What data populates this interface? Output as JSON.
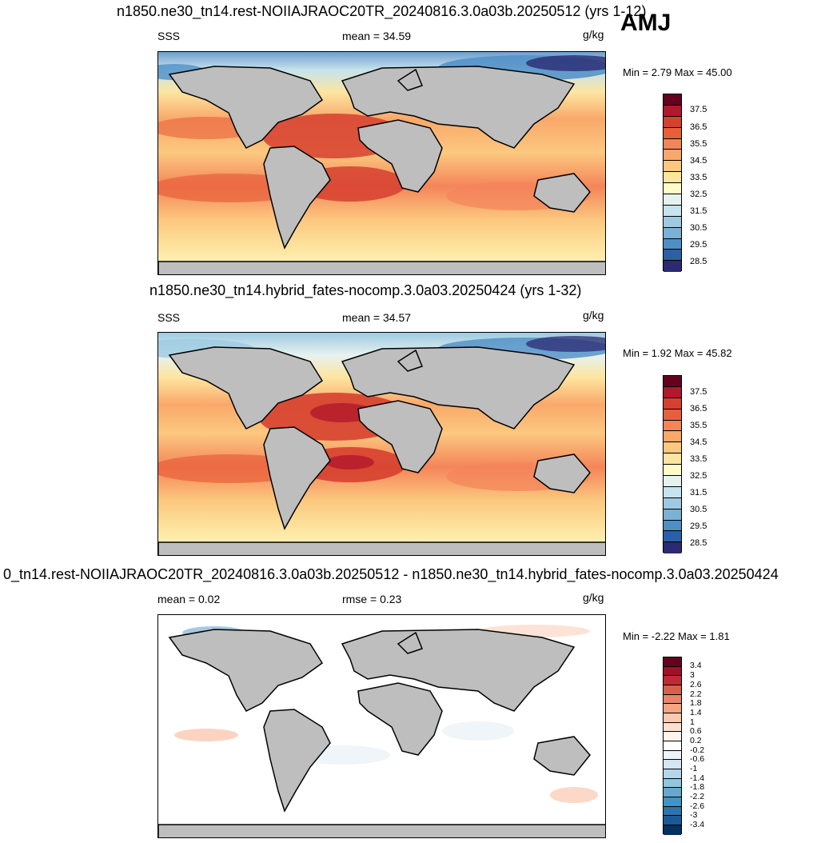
{
  "season": "AMJ",
  "panels": [
    {
      "title": "n1850.ne30_tn14.rest-NOIIAJRAOC20TR_20240816.3.0a03b.20250512 (yrs 1-12)",
      "left_label": "SSS",
      "center_label": "mean =  34.59",
      "units": "g/kg",
      "minmax": "Min =   2.79 Max =  45.00",
      "colorbar_labels": [
        "37.5",
        "36.5",
        "35.5",
        "34.5",
        "33.5",
        "32.5",
        "31.5",
        "30.5",
        "29.5",
        "28.5"
      ]
    },
    {
      "title": "n1850.ne30_tn14.hybrid_fates-nocomp.3.0a03.20250424 (yrs 1-32)",
      "left_label": "SSS",
      "center_label": "mean =  34.57",
      "units": "g/kg",
      "minmax": "Min =   1.92 Max =  45.82",
      "colorbar_labels": [
        "37.5",
        "36.5",
        "35.5",
        "34.5",
        "33.5",
        "32.5",
        "31.5",
        "30.5",
        "29.5",
        "28.5"
      ]
    },
    {
      "title": "0_tn14.rest-NOIIAJRAOC20TR_20240816.3.0a03b.20250512 - n1850.ne30_tn14.hybrid_fates-nocomp.3.0a03.20250424",
      "left_label": "mean =   0.02",
      "center_label": "rmse =   0.23",
      "units": "g/kg",
      "minmax": "Min =  -2.22 Max =   1.81",
      "colorbar_labels": [
        "3.4",
        "3",
        "2.6",
        "2.2",
        "1.8",
        "1.4",
        "1",
        "0.6",
        "0.2",
        "-0.2",
        "-0.6",
        "-1",
        "-1.4",
        "-1.8",
        "-2.2",
        "-2.6",
        "-3",
        "-3.4"
      ]
    }
  ],
  "colors": {
    "land": "#bebebe",
    "sss_scale_top_to_bottom": [
      "#67001f",
      "#b2182b",
      "#d6402f",
      "#e8603a",
      "#f4855a",
      "#f9a86a",
      "#fcc87f",
      "#fde5a0",
      "#fffbc8",
      "#e6f2f0",
      "#c6e3ee",
      "#9ecae1",
      "#7ab1d6",
      "#4f8fc7",
      "#2d5fa8",
      "#2b2a72"
    ],
    "diff_scale_top_to_bottom": [
      "#67001f",
      "#a50f27",
      "#c02a33",
      "#d6604d",
      "#e8846b",
      "#f4a582",
      "#fbc8b0",
      "#fde0d2",
      "#fff3ec",
      "#ffffff",
      "#eef4fa",
      "#d4e6f2",
      "#b6d5eb",
      "#92c5de",
      "#6aa7cf",
      "#4393c3",
      "#2d74b0",
      "#1b5a96",
      "#053061"
    ]
  }
}
